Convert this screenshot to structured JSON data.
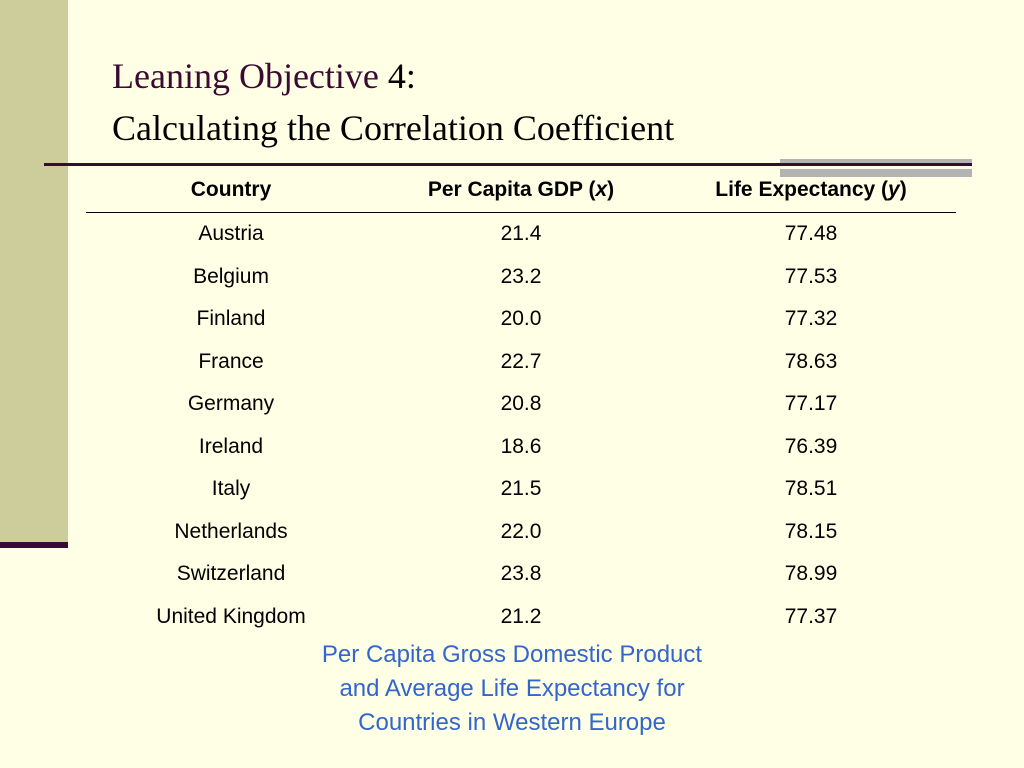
{
  "slide": {
    "title_main": "Leaning Objective",
    "title_suffix": " 4:",
    "subtitle": "Calculating the Correlation Coefficient"
  },
  "table": {
    "headers": {
      "country": "Country",
      "gdp_prefix": "Per Capita GDP (",
      "gdp_var": "x",
      "gdp_suffix": ")",
      "life_prefix": "Life Expectancy (",
      "life_var": "y",
      "life_suffix": ")"
    },
    "rows": [
      {
        "country": "Austria",
        "gdp": "21.4",
        "life": "77.48"
      },
      {
        "country": "Belgium",
        "gdp": "23.2",
        "life": "77.53"
      },
      {
        "country": "Finland",
        "gdp": "20.0",
        "life": "77.32"
      },
      {
        "country": "France",
        "gdp": "22.7",
        "life": "78.63"
      },
      {
        "country": "Germany",
        "gdp": "20.8",
        "life": "77.17"
      },
      {
        "country": "Ireland",
        "gdp": "18.6",
        "life": "76.39"
      },
      {
        "country": "Italy",
        "gdp": "21.5",
        "life": "78.51"
      },
      {
        "country": "Netherlands",
        "gdp": "22.0",
        "life": "78.15"
      },
      {
        "country": "Switzerland",
        "gdp": "23.8",
        "life": "78.99"
      },
      {
        "country": "United Kingdom",
        "gdp": "21.2",
        "life": "77.37"
      }
    ]
  },
  "caption": {
    "line1": "Per Capita Gross Domestic Product",
    "line2": "and Average Life Expectancy for",
    "line3": "Countries in Western Europe"
  },
  "colors": {
    "background": "#FFFFE5",
    "sidebar": "#CDCD9B",
    "accent_dark": "#3B0A32",
    "accent_gray": "#B3B3B3",
    "caption": "#3366CC"
  }
}
